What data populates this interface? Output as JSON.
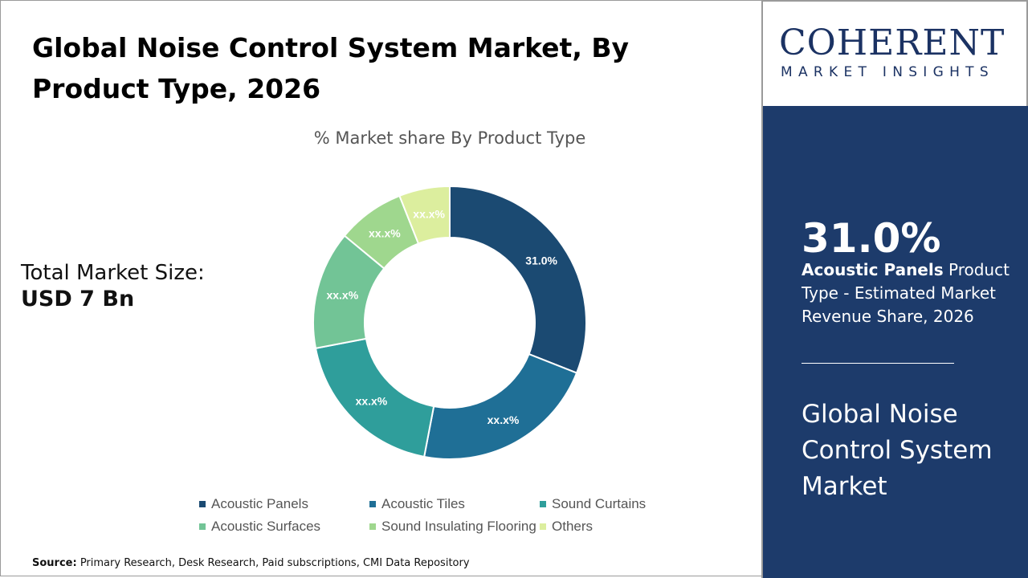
{
  "title": "Global Noise Control System Market, By Product Type, 2026",
  "total_label": "Total Market Size:",
  "total_value": "USD 7 Bn",
  "source_label": "Source:",
  "source_text": " Primary Research, Desk Research, Paid subscriptions, CMI Data Repository",
  "logo": {
    "top": "COHERENT",
    "bottom": "MARKET INSIGHTS"
  },
  "side": {
    "stat": "31.0%",
    "desc_bold": "Acoustic Panels",
    "desc_rest": " Product Type - Estimated Market Revenue Share, 2026",
    "market_name": "Global Noise Control System Market"
  },
  "chart_data": {
    "type": "pie",
    "donut": true,
    "title": "% Market share By Product Type",
    "categories": [
      "Acoustic Panels",
      "Acoustic Tiles",
      "Sound Curtains",
      "Acoustic Surfaces",
      "Sound Insulating Flooring",
      "Others"
    ],
    "values": [
      31.0,
      22.0,
      19.0,
      14.0,
      8.0,
      6.0
    ],
    "labels": [
      "31.0%",
      "xx.x%",
      "xx.x%",
      "xx.x%",
      "xx.x%",
      "xx.x%"
    ],
    "colors": [
      "#1b4a72",
      "#1f6f96",
      "#2f9e9b",
      "#72c496",
      "#9fd78e",
      "#dcee9e"
    ],
    "legend_position": "bottom"
  }
}
